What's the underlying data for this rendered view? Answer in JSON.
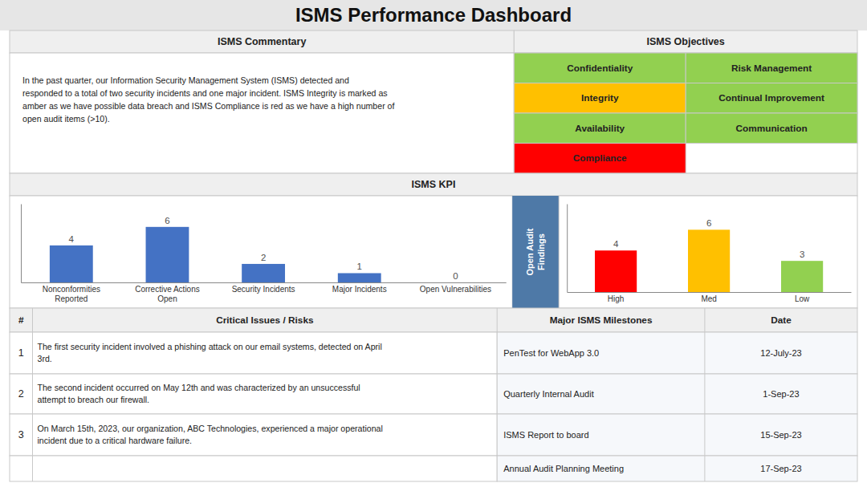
{
  "title": "ISMS Performance Dashboard",
  "commentary": {
    "header": "ISMS Commentary",
    "text": "In the past quarter, our Information Security Management System (ISMS) detected and\nresponded to a total of two security incidents and one major incident. ISMS Integrity is marked as\namber as we have possible data breach and ISMS Compliance is red as we have a high number of\nopen audit items (>10)."
  },
  "objectives": {
    "header": "ISMS Objectives",
    "items": [
      {
        "label": "Confidentiality",
        "color": "#92d050"
      },
      {
        "label": "Risk Management",
        "color": "#92d050"
      },
      {
        "label": "Integrity",
        "color": "#ffc000"
      },
      {
        "label": "Continual Improvement",
        "color": "#92d050"
      },
      {
        "label": "Availability",
        "color": "#92d050"
      },
      {
        "label": "Communication",
        "color": "#92d050"
      },
      {
        "label": "Compliance",
        "color": "#ff0000"
      }
    ]
  },
  "chart_data": [
    {
      "type": "bar",
      "title": "ISMS KPI",
      "categories": [
        "Nonconformities\nReported",
        "Corrective Actions\nOpen",
        "Security Incidents",
        "Major Incidents",
        "Open Vulnerabilities"
      ],
      "values": [
        4,
        6,
        2,
        1,
        0
      ],
      "color": "#4472c4",
      "ylim": [
        0,
        8.5
      ],
      "yticks": [],
      "tick_labels": "x",
      "data_labels": true
    },
    {
      "type": "bar",
      "title": "Open Audit\nFindings",
      "categories": [
        "High",
        "Med",
        "Low"
      ],
      "values": [
        4,
        6,
        3
      ],
      "colors": [
        "#ff0000",
        "#ffc000",
        "#92d050"
      ],
      "ylim": [
        0,
        8.5
      ],
      "yticks": [],
      "tick_labels": "x",
      "data_labels": true
    }
  ],
  "issues": {
    "headers": [
      "#",
      "Critical Issues / Risks",
      "Major ISMS Milestones",
      "Date"
    ],
    "rows": [
      {
        "num": "1",
        "text": "The first security incident involved a phishing attack on our email systems, detected on April\n3rd.",
        "milestone": "PenTest for WebApp 3.0",
        "date": "12-July-23"
      },
      {
        "num": "2",
        "text": "The second incident occurred on May 12th and was characterized by an unsuccessful\nattempt to breach our firewall.",
        "milestone": "Quarterly Internal Audit",
        "date": "1-Sep-23"
      },
      {
        "num": "3",
        "text": "On March 15th, 2023, our organization, ABC Technologies, experienced a major operational\nincident due to a critical hardware failure.",
        "milestone": "ISMS Report to board",
        "date": "15-Sep-23"
      },
      {
        "milestone": "Annual Audit Planning Meeting",
        "date": "17-Sep-23"
      }
    ]
  }
}
